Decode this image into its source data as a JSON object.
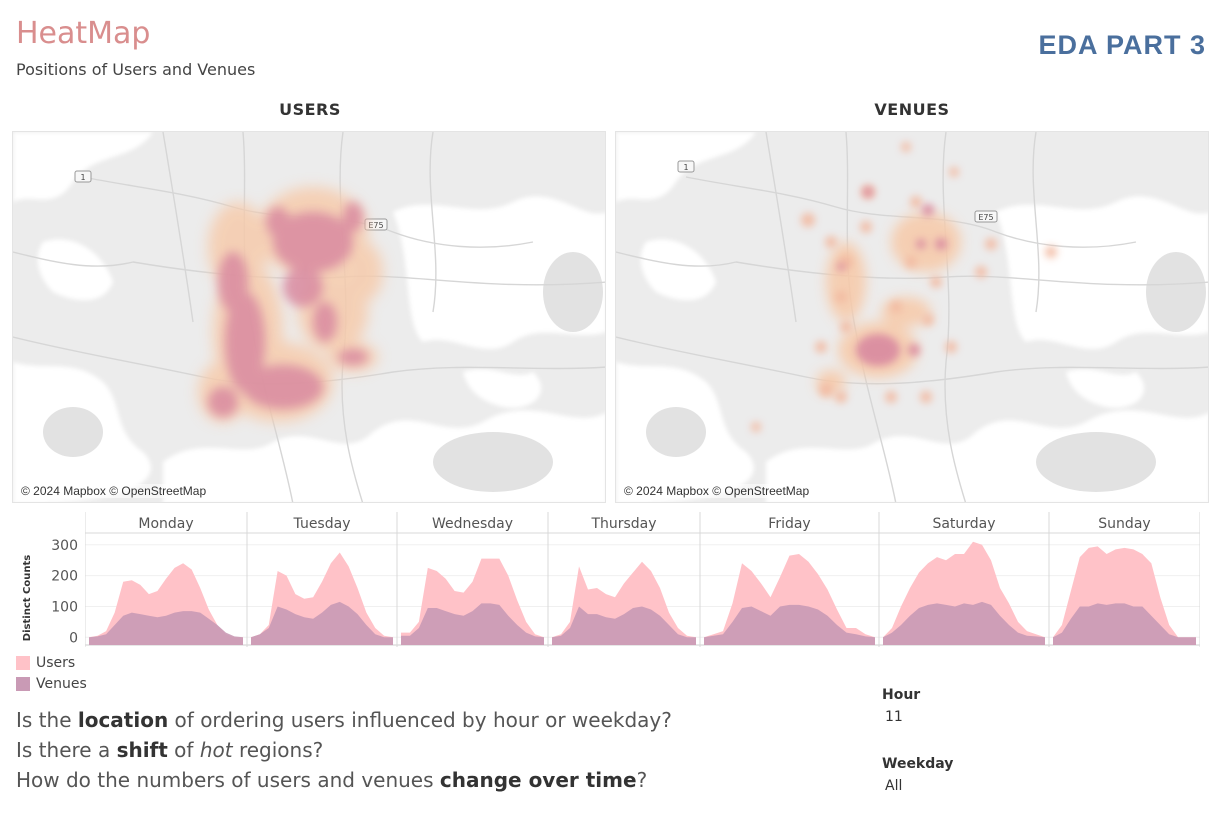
{
  "header": {
    "title": "HeatMap",
    "subtitle": "Positions of Users and Venues",
    "badge": "EDA PART 3"
  },
  "maps": [
    {
      "title": "USERS",
      "attribution": "© 2024 Mapbox © OpenStreetMap",
      "road_labels": [
        "1",
        "E75"
      ]
    },
    {
      "title": "VENUES",
      "attribution": "© 2024 Mapbox © OpenStreetMap",
      "road_labels": [
        "1",
        "E75"
      ]
    }
  ],
  "colors": {
    "users": "#ffc2c8",
    "venues": "#c99ab5",
    "title": "#d98e8e",
    "badge": "#4a6f9d"
  },
  "chart_data": {
    "type": "area",
    "ylabel": "Distinct Counts",
    "yticks": [
      0,
      100,
      200,
      300
    ],
    "ylim": [
      -25,
      335
    ],
    "legend": [
      {
        "name": "Users",
        "color": "#ffc2c8"
      },
      {
        "name": "Venues",
        "color": "#c99ab5"
      }
    ],
    "panels": [
      {
        "day": "Monday",
        "x": [
          3,
          4,
          5,
          6,
          7,
          8,
          9,
          10,
          11,
          12,
          13,
          14,
          15,
          16,
          17,
          18,
          19,
          20,
          21
        ],
        "ticks": [
          "5",
          "8",
          "11",
          "14",
          "17",
          "20"
        ],
        "users": [
          0,
          5,
          20,
          80,
          180,
          185,
          170,
          140,
          150,
          190,
          225,
          240,
          220,
          160,
          90,
          40,
          10,
          0,
          0
        ],
        "venues": [
          0,
          3,
          10,
          40,
          70,
          80,
          75,
          70,
          65,
          70,
          80,
          85,
          85,
          80,
          60,
          40,
          15,
          3,
          0
        ]
      },
      {
        "day": "Tuesday",
        "x": [
          4,
          5,
          6,
          7,
          8,
          9,
          10,
          11,
          12,
          13,
          14,
          15,
          16,
          17,
          18,
          19,
          20
        ],
        "ticks": [
          "6",
          "9",
          "12",
          "15",
          "18"
        ],
        "users": [
          0,
          10,
          40,
          215,
          200,
          140,
          125,
          130,
          180,
          240,
          275,
          230,
          160,
          80,
          30,
          5,
          0
        ],
        "venues": [
          0,
          10,
          30,
          100,
          90,
          75,
          65,
          60,
          80,
          105,
          115,
          100,
          75,
          40,
          10,
          0,
          0
        ]
      },
      {
        "day": "Wednesday",
        "x": [
          4,
          5,
          6,
          7,
          8,
          9,
          10,
          11,
          12,
          13,
          14,
          15,
          16,
          17,
          18,
          19,
          20
        ],
        "ticks": [
          "6",
          "9",
          "12",
          "15",
          "18"
        ],
        "users": [
          15,
          15,
          50,
          225,
          215,
          190,
          150,
          145,
          180,
          255,
          255,
          255,
          200,
          120,
          50,
          10,
          0
        ],
        "venues": [
          5,
          5,
          30,
          95,
          95,
          85,
          75,
          70,
          85,
          110,
          110,
          105,
          70,
          40,
          15,
          3,
          0
        ]
      },
      {
        "day": "Thursday",
        "x": [
          4,
          5,
          6,
          7,
          8,
          9,
          10,
          11,
          12,
          13,
          14,
          15,
          16,
          17,
          18,
          19,
          20
        ],
        "ticks": [
          "6",
          "9",
          "12",
          "15",
          "18"
        ],
        "users": [
          0,
          10,
          50,
          230,
          155,
          160,
          140,
          130,
          175,
          210,
          245,
          215,
          160,
          80,
          30,
          5,
          0
        ],
        "venues": [
          0,
          5,
          30,
          100,
          75,
          75,
          65,
          60,
          75,
          95,
          100,
          90,
          70,
          40,
          10,
          0,
          0
        ]
      },
      {
        "day": "Friday",
        "x": [
          3,
          4,
          5,
          6,
          7,
          8,
          9,
          10,
          11,
          12,
          13,
          14,
          15,
          16,
          17,
          18,
          19,
          20,
          21
        ],
        "ticks": [
          "5",
          "8",
          "11",
          "14",
          "17",
          "20"
        ],
        "users": [
          0,
          10,
          20,
          110,
          240,
          215,
          175,
          130,
          195,
          265,
          270,
          245,
          205,
          155,
          90,
          30,
          30,
          10,
          0
        ],
        "venues": [
          0,
          5,
          10,
          50,
          95,
          100,
          85,
          70,
          100,
          105,
          105,
          100,
          90,
          70,
          40,
          15,
          10,
          3,
          0
        ]
      },
      {
        "day": "Saturday",
        "x": [
          4,
          5,
          6,
          7,
          8,
          9,
          10,
          11,
          12,
          13,
          14,
          15,
          16,
          17,
          18,
          19,
          20,
          21,
          22
        ],
        "ticks": [
          "6",
          "9",
          "12",
          "15",
          "18",
          "21"
        ],
        "users": [
          0,
          30,
          100,
          160,
          210,
          240,
          260,
          250,
          270,
          270,
          310,
          300,
          250,
          160,
          110,
          50,
          20,
          10,
          0
        ],
        "venues": [
          0,
          15,
          40,
          70,
          95,
          105,
          110,
          105,
          100,
          110,
          105,
          115,
          105,
          70,
          40,
          15,
          5,
          3,
          0
        ]
      },
      {
        "day": "Sunday",
        "x": [
          4,
          5,
          6,
          7,
          8,
          9,
          10,
          11,
          12,
          13,
          14,
          15,
          16,
          17,
          18,
          19,
          20
        ],
        "ticks": [
          "6",
          "9",
          "12",
          "15",
          "18"
        ],
        "users": [
          0,
          40,
          150,
          260,
          290,
          295,
          270,
          285,
          290,
          285,
          270,
          240,
          130,
          40,
          0,
          0,
          0
        ],
        "venues": [
          0,
          15,
          60,
          100,
          100,
          110,
          105,
          110,
          110,
          100,
          100,
          70,
          40,
          10,
          0,
          0,
          0
        ]
      }
    ]
  },
  "questions": [
    {
      "parts": [
        {
          "t": "Is the ",
          "s": "n"
        },
        {
          "t": "location",
          "s": "b"
        },
        {
          "t": " of ordering users influenced by hour or weekday?",
          "s": "n"
        }
      ]
    },
    {
      "parts": [
        {
          "t": "Is there a ",
          "s": "n"
        },
        {
          "t": "shift",
          "s": "b"
        },
        {
          "t": " of ",
          "s": "n"
        },
        {
          "t": "hot",
          "s": "i"
        },
        {
          "t": " regions?",
          "s": "n"
        }
      ]
    },
    {
      "parts": [
        {
          "t": "How do the numbers of users and venues ",
          "s": "n"
        },
        {
          "t": "change over time",
          "s": "b"
        },
        {
          "t": "?",
          "s": "n"
        }
      ]
    }
  ],
  "filters": [
    {
      "title": "Hour",
      "value": "11"
    },
    {
      "title": "Weekday",
      "value": "All"
    }
  ]
}
